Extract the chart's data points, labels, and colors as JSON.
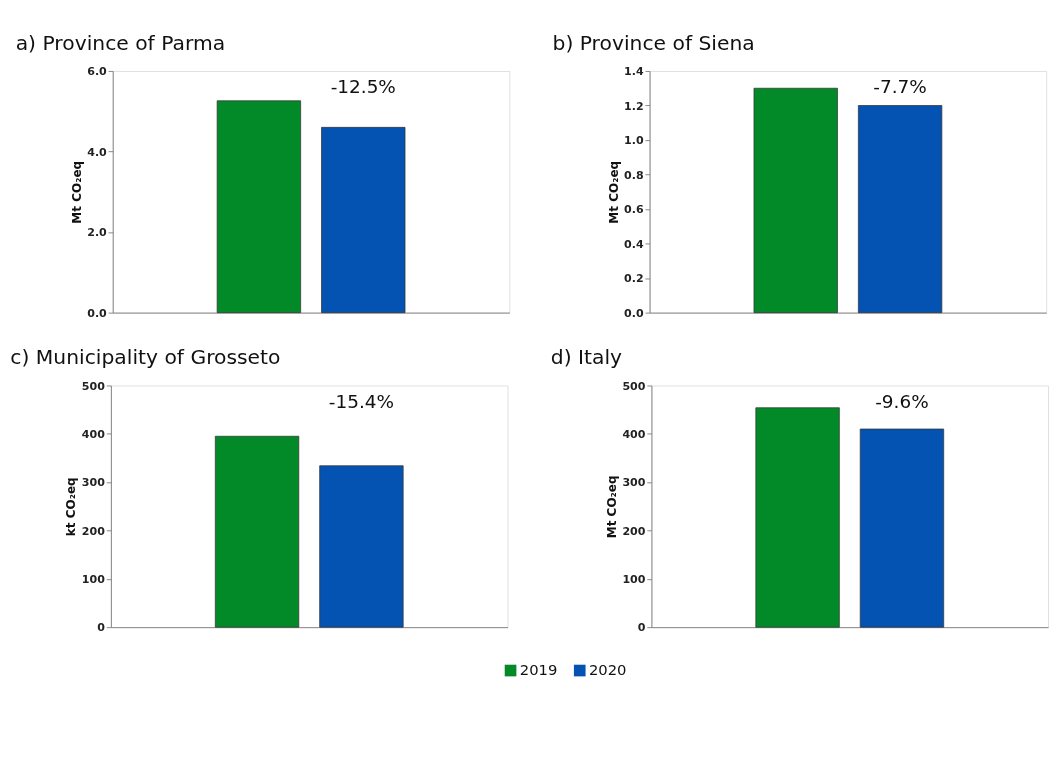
{
  "chart_data": [
    {
      "type": "bar",
      "title": "a) Province of Parma",
      "ylabel": "Mt CO₂eq",
      "categories": [
        null
      ],
      "series": [
        {
          "color": "#038a28",
          "values": [
            5.26
          ]
        },
        {
          "color": "#0453b3",
          "values": [
            4.6
          ]
        }
      ],
      "ylim": [
        0,
        6
      ],
      "yticks": [
        {
          "value": 0,
          "label": "0.0"
        },
        {
          "value": 2,
          "label": "2.0"
        },
        {
          "value": 4,
          "label": "4.0"
        },
        {
          "value": 6,
          "label": "6.0"
        }
      ],
      "annotations": [
        "-12.5%"
      ],
      "tick_labels": "y",
      "grid": false
    },
    {
      "type": "bar",
      "title": "b) Province of Siena",
      "ylabel": "Mt CO₂eq",
      "categories": [
        null
      ],
      "series": [
        {
          "color": "#038a28",
          "values": [
            1.3
          ]
        },
        {
          "color": "#0453b3",
          "values": [
            1.2
          ]
        }
      ],
      "ylim": [
        0,
        1.4
      ],
      "yticks": [
        {
          "value": 0,
          "label": "0.0"
        },
        0.2,
        0.4,
        0.6,
        0.8,
        {
          "value": 1,
          "label": "1.0"
        },
        1.2,
        1.4
      ],
      "annotations": [
        "-7.7%"
      ],
      "tick_labels": "y",
      "grid": false
    },
    {
      "type": "bar",
      "title": "c) Municipality of Grosseto",
      "ylabel": "kt CO₂eq",
      "categories": [
        null
      ],
      "series": [
        {
          "color": "#038a28",
          "values": [
            395
          ]
        },
        {
          "color": "#0453b3",
          "values": [
            334
          ]
        }
      ],
      "ylim": [
        0,
        500
      ],
      "yticks": [
        0,
        100,
        200,
        300,
        400,
        500
      ],
      "annotations": [
        "-15.4%"
      ],
      "tick_labels": "y",
      "grid": false
    },
    {
      "type": "bar",
      "title": "d) Italy",
      "ylabel": "Mt CO₂eq",
      "categories": [
        null
      ],
      "series": [
        {
          "name": "2019",
          "color": "#038a28",
          "values": [
            454
          ]
        },
        {
          "name": "2020",
          "color": "#0453b3",
          "values": [
            410
          ]
        }
      ],
      "ylim": [
        0,
        500
      ],
      "yticks": [
        0,
        100,
        200,
        300,
        400,
        500
      ],
      "annotations": [
        "-9.6%"
      ],
      "tick_labels": "y",
      "grid": false,
      "legend": "bottom"
    }
  ]
}
